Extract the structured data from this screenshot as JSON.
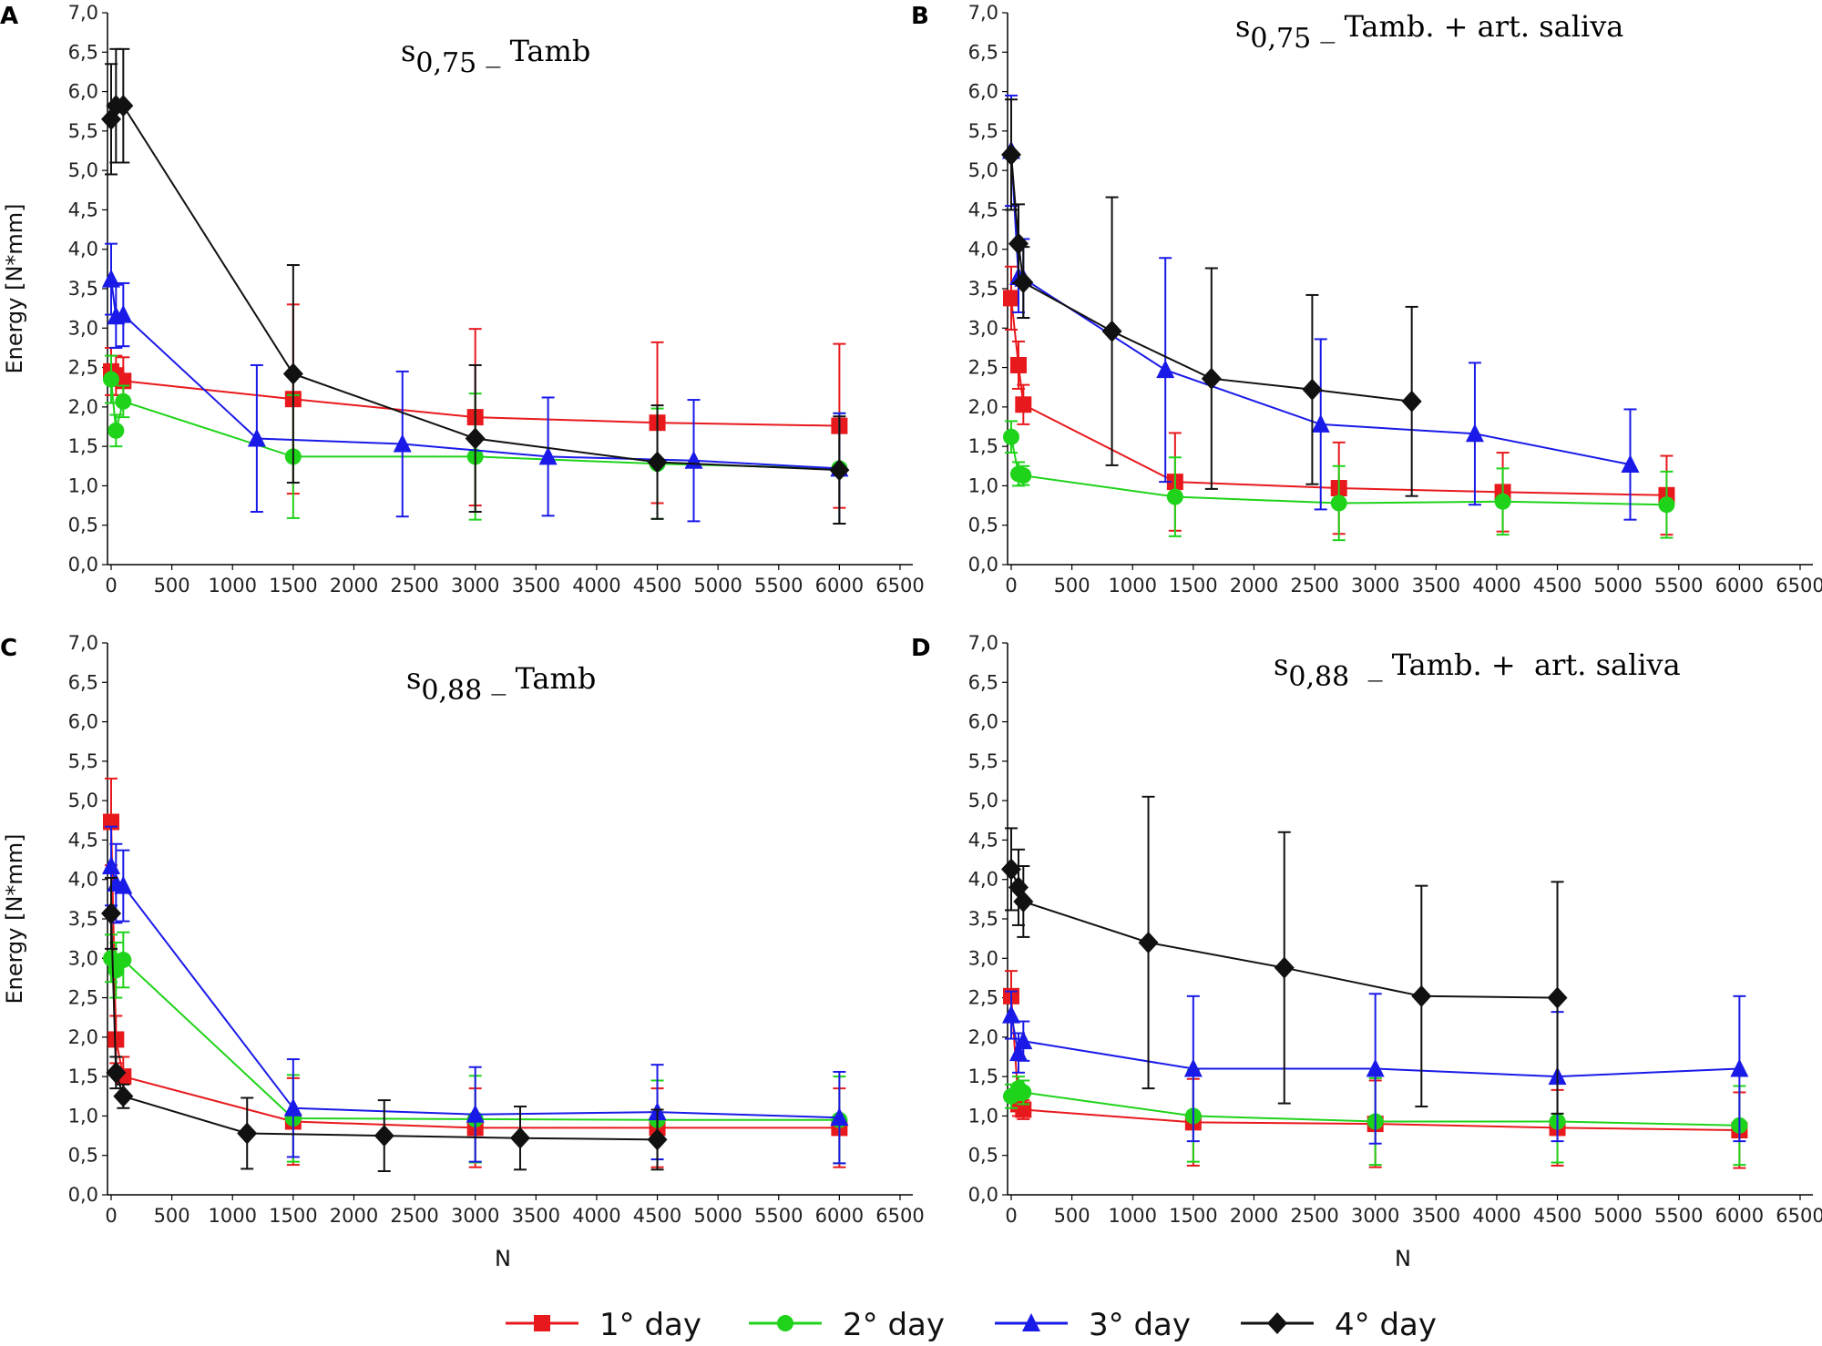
{
  "chart_data": [
    {
      "panel": "A",
      "type": "line",
      "title": {
        "prefix": "s",
        "sub": "0,75",
        "suffix": " _ Tamb"
      },
      "ylabel": "Energy [N*mm]",
      "xlabel": "",
      "xlim": [
        0,
        6500
      ],
      "ylim": [
        0,
        7
      ],
      "series": [
        {
          "name": "1° day",
          "color": "#e8191d",
          "marker": "square",
          "points": [
            [
              0,
              2.45,
              0.3
            ],
            [
              40,
              2.4,
              0.25
            ],
            [
              100,
              2.33,
              0.3
            ],
            [
              1500,
              2.1,
              1.2
            ],
            [
              3000,
              1.87,
              1.12
            ],
            [
              4500,
              1.8,
              1.02
            ],
            [
              6000,
              1.76,
              1.04
            ]
          ]
        },
        {
          "name": "2° day",
          "color": "#1fd31a",
          "marker": "circle",
          "points": [
            [
              0,
              2.35,
              0.3
            ],
            [
              40,
              1.7,
              0.2
            ],
            [
              100,
              2.07,
              0.2
            ],
            [
              1500,
              1.37,
              0.78
            ],
            [
              3000,
              1.37,
              0.8
            ],
            [
              4500,
              1.28,
              0.7
            ],
            [
              6000,
              1.22,
              0.7
            ]
          ]
        },
        {
          "name": "3° day",
          "color": "#1a1ae8",
          "marker": "triangle",
          "points": [
            [
              0,
              3.62,
              0.45
            ],
            [
              40,
              3.15,
              0.4
            ],
            [
              100,
              3.17,
              0.4
            ],
            [
              1200,
              1.6,
              0.93
            ],
            [
              2400,
              1.53,
              0.92
            ],
            [
              3600,
              1.37,
              0.75
            ],
            [
              4800,
              1.32,
              0.77
            ],
            [
              6000,
              1.22,
              0.7
            ]
          ]
        },
        {
          "name": "4° day",
          "color": "#111111",
          "marker": "diamond",
          "points": [
            [
              0,
              5.65,
              0.7
            ],
            [
              40,
              5.82,
              0.72
            ],
            [
              100,
              5.82,
              0.72
            ],
            [
              1500,
              2.42,
              1.38
            ],
            [
              3000,
              1.6,
              0.93
            ],
            [
              4500,
              1.3,
              0.72
            ],
            [
              6000,
              1.2,
              0.68
            ]
          ]
        }
      ]
    },
    {
      "panel": "B",
      "type": "line",
      "title": {
        "prefix": "s",
        "sub": "0,75",
        "suffix": " _ Tamb. + art. saliva"
      },
      "ylabel": "",
      "xlabel": "",
      "xlim": [
        0,
        6500
      ],
      "ylim": [
        0,
        7
      ],
      "series": [
        {
          "name": "1° day",
          "color": "#e8191d",
          "marker": "square",
          "points": [
            [
              0,
              3.38,
              0.4
            ],
            [
              60,
              2.53,
              0.3
            ],
            [
              100,
              2.03,
              0.25
            ],
            [
              1350,
              1.05,
              0.62
            ],
            [
              2700,
              0.97,
              0.58
            ],
            [
              4050,
              0.92,
              0.5
            ],
            [
              5400,
              0.88,
              0.5
            ]
          ]
        },
        {
          "name": "2° day",
          "color": "#1fd31a",
          "marker": "circle",
          "points": [
            [
              0,
              1.62,
              0.2
            ],
            [
              60,
              1.15,
              0.15
            ],
            [
              100,
              1.13,
              0.12
            ],
            [
              1350,
              0.86,
              0.5
            ],
            [
              2700,
              0.78,
              0.47
            ],
            [
              4050,
              0.8,
              0.42
            ],
            [
              5400,
              0.76,
              0.42
            ]
          ]
        },
        {
          "name": "3° day",
          "color": "#1a1ae8",
          "marker": "triangle",
          "points": [
            [
              0,
              5.25,
              0.7
            ],
            [
              60,
              3.65,
              0.45
            ],
            [
              100,
              3.63,
              0.5
            ],
            [
              1270,
              2.47,
              1.42
            ],
            [
              2550,
              1.78,
              1.08
            ],
            [
              3820,
              1.66,
              0.9
            ],
            [
              5100,
              1.27,
              0.7
            ]
          ]
        },
        {
          "name": "4° day",
          "color": "#111111",
          "marker": "diamond",
          "points": [
            [
              0,
              5.2,
              0.7
            ],
            [
              60,
              4.07,
              0.5
            ],
            [
              100,
              3.58,
              0.45
            ],
            [
              830,
              2.96,
              1.7
            ],
            [
              1650,
              2.36,
              1.4
            ],
            [
              2480,
              2.22,
              1.2
            ],
            [
              3300,
              2.07,
              1.2
            ]
          ]
        }
      ]
    },
    {
      "panel": "C",
      "type": "line",
      "title": {
        "prefix": "s",
        "sub": "0,88",
        "suffix": " _ Tamb"
      },
      "ylabel": "Energy [N*mm]",
      "xlabel": "N",
      "xlim": [
        0,
        6500
      ],
      "ylim": [
        0,
        7
      ],
      "series": [
        {
          "name": "1° day",
          "color": "#e8191d",
          "marker": "square",
          "points": [
            [
              0,
              4.73,
              0.55
            ],
            [
              40,
              1.97,
              0.3
            ],
            [
              100,
              1.5,
              0.25
            ],
            [
              1500,
              0.93,
              0.55
            ],
            [
              3000,
              0.85,
              0.5
            ],
            [
              4500,
              0.85,
              0.5
            ],
            [
              6000,
              0.85,
              0.5
            ]
          ]
        },
        {
          "name": "2° day",
          "color": "#1fd31a",
          "marker": "circle",
          "points": [
            [
              0,
              3.0,
              0.3
            ],
            [
              40,
              2.85,
              0.35
            ],
            [
              100,
              2.98,
              0.35
            ],
            [
              1500,
              0.97,
              0.55
            ],
            [
              3000,
              0.96,
              0.55
            ],
            [
              4500,
              0.95,
              0.5
            ],
            [
              6000,
              0.95,
              0.55
            ]
          ]
        },
        {
          "name": "3° day",
          "color": "#1a1ae8",
          "marker": "triangle",
          "points": [
            [
              0,
              4.17,
              0.5
            ],
            [
              40,
              3.95,
              0.5
            ],
            [
              100,
              3.92,
              0.45
            ],
            [
              1500,
              1.1,
              0.62
            ],
            [
              3000,
              1.02,
              0.6
            ],
            [
              4500,
              1.05,
              0.6
            ],
            [
              6000,
              0.98,
              0.58
            ]
          ]
        },
        {
          "name": "4° day",
          "color": "#111111",
          "marker": "diamond",
          "points": [
            [
              0,
              3.57,
              0.45
            ],
            [
              40,
              1.55,
              0.2
            ],
            [
              100,
              1.25,
              0.15
            ],
            [
              1120,
              0.78,
              0.45
            ],
            [
              2250,
              0.75,
              0.45
            ],
            [
              3370,
              0.72,
              0.4
            ],
            [
              4500,
              0.7,
              0.38
            ]
          ]
        }
      ]
    },
    {
      "panel": "D",
      "type": "line",
      "title": {
        "prefix": "s",
        "sub": "0,88",
        "suffix": "  _ Tamb. +  art. saliva"
      },
      "ylabel": "",
      "xlabel": "N",
      "xlim": [
        0,
        6500
      ],
      "ylim": [
        0,
        7
      ],
      "series": [
        {
          "name": "1° day",
          "color": "#e8191d",
          "marker": "square",
          "points": [
            [
              0,
              2.52,
              0.32
            ],
            [
              60,
              1.15,
              0.15
            ],
            [
              100,
              1.08,
              0.12
            ],
            [
              1500,
              0.92,
              0.55
            ],
            [
              3000,
              0.9,
              0.55
            ],
            [
              4500,
              0.85,
              0.48
            ],
            [
              6000,
              0.82,
              0.48
            ]
          ]
        },
        {
          "name": "2° day",
          "color": "#1fd31a",
          "marker": "circle",
          "points": [
            [
              0,
              1.25,
              0.15
            ],
            [
              60,
              1.35,
              0.15
            ],
            [
              100,
              1.3,
              0.15
            ],
            [
              1500,
              1.0,
              0.58
            ],
            [
              3000,
              0.93,
              0.55
            ],
            [
              4500,
              0.93,
              0.52
            ],
            [
              6000,
              0.88,
              0.5
            ]
          ]
        },
        {
          "name": "3° day",
          "color": "#1a1ae8",
          "marker": "triangle",
          "points": [
            [
              0,
              2.28,
              0.3
            ],
            [
              60,
              1.8,
              0.25
            ],
            [
              100,
              1.95,
              0.25
            ],
            [
              1500,
              1.6,
              0.92
            ],
            [
              3000,
              1.6,
              0.95
            ],
            [
              4500,
              1.5,
              0.82
            ],
            [
              6000,
              1.6,
              0.92
            ]
          ]
        },
        {
          "name": "4° day",
          "color": "#111111",
          "marker": "diamond",
          "points": [
            [
              0,
              4.13,
              0.52
            ],
            [
              60,
              3.9,
              0.48
            ],
            [
              100,
              3.72,
              0.45
            ],
            [
              1130,
              3.2,
              1.85
            ],
            [
              2250,
              2.88,
              1.72
            ],
            [
              3380,
              2.52,
              1.4
            ],
            [
              4500,
              2.5,
              1.47
            ]
          ]
        }
      ]
    }
  ],
  "legend": [
    {
      "label": "1° day",
      "color": "#e8191d",
      "marker": "square"
    },
    {
      "label": "2° day",
      "color": "#1fd31a",
      "marker": "circle"
    },
    {
      "label": "3° day",
      "color": "#1a1ae8",
      "marker": "triangle"
    },
    {
      "label": "4° day",
      "color": "#111111",
      "marker": "diamond"
    }
  ]
}
